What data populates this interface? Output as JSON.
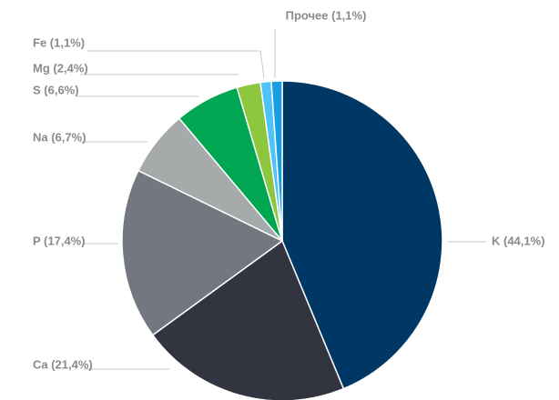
{
  "chart_data": {
    "type": "pie",
    "values": [
      44.1,
      21.4,
      17.4,
      6.7,
      6.6,
      2.4,
      1.1,
      1.1
    ],
    "value_labels": [
      "K (44,1%)",
      "Ca (21,4%)",
      "P (17,4%)",
      "Na (6,7%)",
      "S (6,6%)",
      "Mg (2,4%)",
      "Fe (1,1%)",
      "Прочее (1,1%)"
    ],
    "colors": [
      "#003865",
      "#32353f",
      "#737880",
      "#a7aaab",
      "#00a651",
      "#8dc63f",
      "#4fc3f7",
      "#1a9ee2"
    ]
  }
}
